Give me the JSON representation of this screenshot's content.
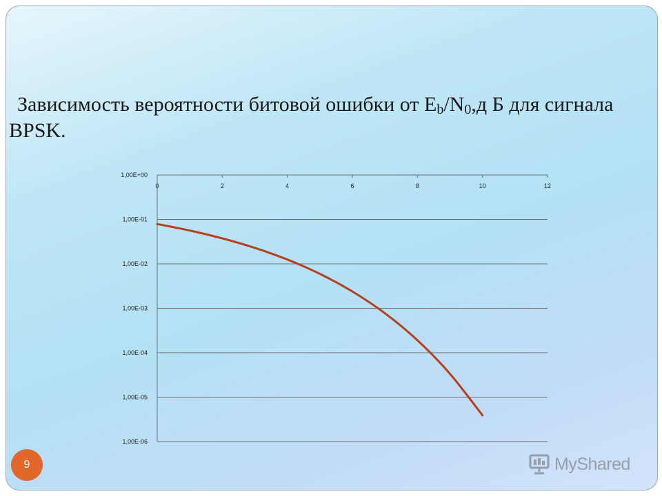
{
  "slide": {
    "title_parts": {
      "prefix": "Зависимость вероятности битовой ошибки от E",
      "sub1": "b",
      "mid": "/N",
      "sub2": "0",
      "suffix": ",д Б  для сигнала BPSK."
    },
    "page_number": "9",
    "watermark": "MyShared"
  },
  "colors": {
    "line": "#b3401f",
    "grid": "#6e6e6e",
    "page_badge": "#e2672a"
  },
  "chart_data": {
    "type": "line",
    "x_scale": "linear",
    "y_scale": "log",
    "x_ticks": [
      "0",
      "2",
      "4",
      "6",
      "8",
      "10",
      "12"
    ],
    "y_ticks": [
      "1,00E+00",
      "1,00E-01",
      "1,00E-02",
      "1,00E-03",
      "1,00E-04",
      "1,00E-05",
      "1,00E-06"
    ],
    "xlim": [
      0,
      12
    ],
    "ylim": [
      1e-06,
      1
    ],
    "x_axis_position": "top",
    "grid": "horizontal",
    "series": [
      {
        "x": [
          0,
          1,
          2,
          3,
          4,
          5,
          6,
          7,
          8,
          9,
          10
        ],
        "y": [
          0.0786,
          0.0563,
          0.0375,
          0.0229,
          0.0125,
          0.00595,
          0.00239,
          0.000773,
          0.000191,
          3.36e-05,
          3.9e-06
        ]
      }
    ]
  }
}
